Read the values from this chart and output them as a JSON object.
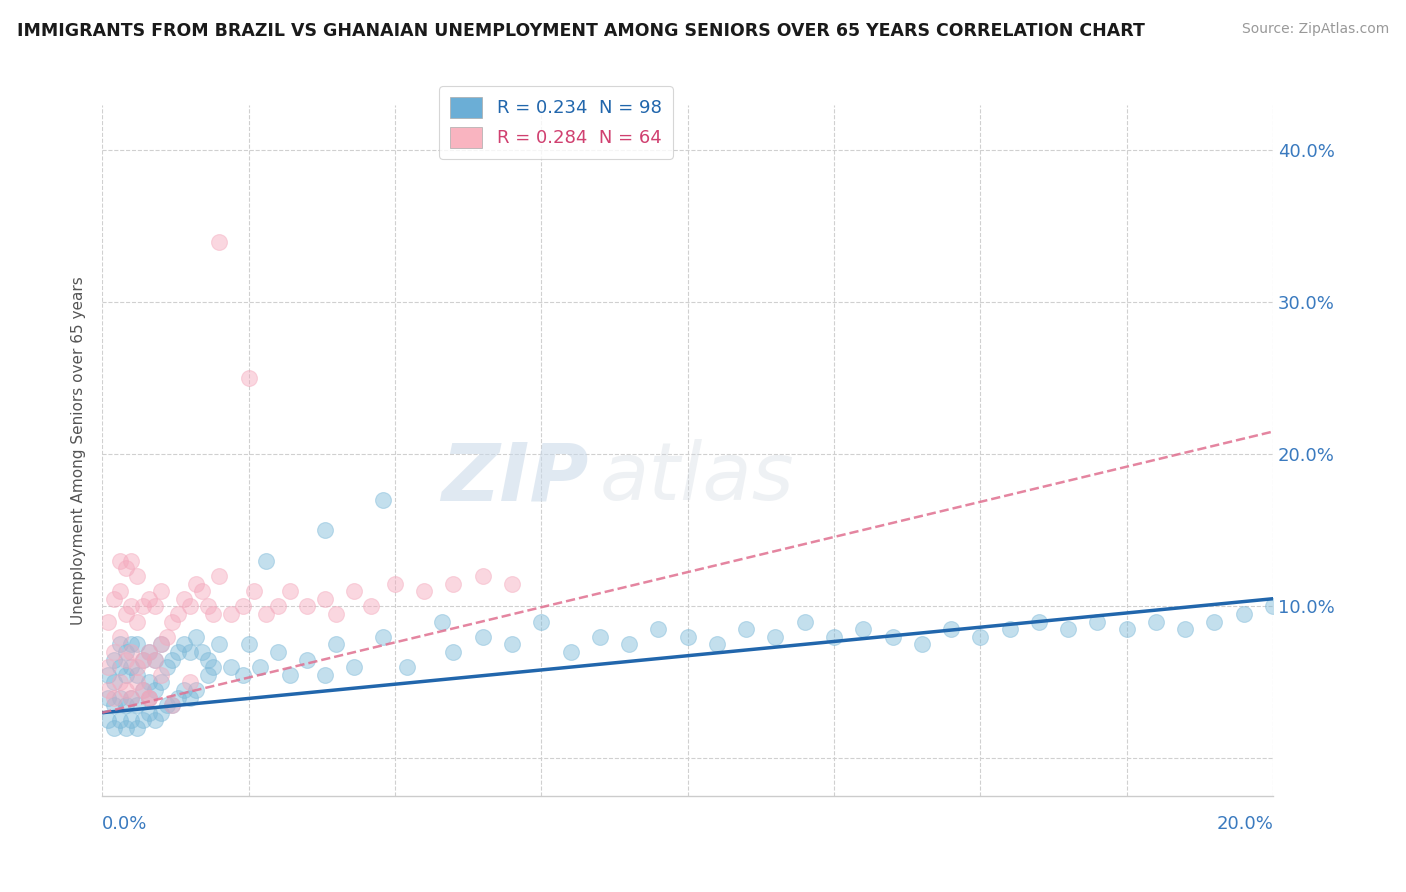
{
  "title": "IMMIGRANTS FROM BRAZIL VS GHANAIAN UNEMPLOYMENT AMONG SENIORS OVER 65 YEARS CORRELATION CHART",
  "source": "Source: ZipAtlas.com",
  "ylabel": "Unemployment Among Seniors over 65 years",
  "yticks": [
    0.0,
    0.1,
    0.2,
    0.3,
    0.4
  ],
  "ytick_labels": [
    "",
    "10.0%",
    "20.0%",
    "30.0%",
    "40.0%"
  ],
  "xlim": [
    0.0,
    0.2
  ],
  "ylim": [
    -0.025,
    0.43
  ],
  "legend_entries": [
    {
      "label": "R = 0.234  N = 98",
      "color": "#6baed6",
      "text_color": "#2166ac"
    },
    {
      "label": "R = 0.284  N = 64",
      "color": "#f9b4c0",
      "text_color": "#d04070"
    }
  ],
  "watermark_zip": "ZIP",
  "watermark_atlas": "atlas",
  "blue_color": "#7bb8d8",
  "pink_color": "#f4a8bc",
  "blue_line_color": "#2166ac",
  "pink_line_color": "#e07090",
  "grid_color": "#d0d0d0",
  "background_color": "#ffffff",
  "blue_scatter_x": [
    0.001,
    0.001,
    0.001,
    0.002,
    0.002,
    0.002,
    0.002,
    0.003,
    0.003,
    0.003,
    0.003,
    0.004,
    0.004,
    0.004,
    0.004,
    0.005,
    0.005,
    0.005,
    0.005,
    0.006,
    0.006,
    0.006,
    0.006,
    0.007,
    0.007,
    0.007,
    0.008,
    0.008,
    0.008,
    0.009,
    0.009,
    0.009,
    0.01,
    0.01,
    0.01,
    0.011,
    0.011,
    0.012,
    0.012,
    0.013,
    0.013,
    0.014,
    0.014,
    0.015,
    0.015,
    0.016,
    0.016,
    0.017,
    0.018,
    0.019,
    0.02,
    0.022,
    0.024,
    0.025,
    0.027,
    0.03,
    0.032,
    0.035,
    0.038,
    0.04,
    0.043,
    0.048,
    0.052,
    0.058,
    0.06,
    0.065,
    0.07,
    0.075,
    0.08,
    0.085,
    0.09,
    0.095,
    0.1,
    0.105,
    0.11,
    0.115,
    0.12,
    0.125,
    0.13,
    0.135,
    0.14,
    0.145,
    0.15,
    0.155,
    0.16,
    0.165,
    0.17,
    0.175,
    0.18,
    0.185,
    0.19,
    0.195,
    0.2,
    0.048,
    0.038,
    0.028,
    0.018,
    0.008
  ],
  "blue_scatter_y": [
    0.025,
    0.04,
    0.055,
    0.02,
    0.035,
    0.05,
    0.065,
    0.025,
    0.04,
    0.06,
    0.075,
    0.02,
    0.035,
    0.055,
    0.07,
    0.025,
    0.04,
    0.06,
    0.075,
    0.02,
    0.035,
    0.055,
    0.075,
    0.025,
    0.045,
    0.065,
    0.03,
    0.05,
    0.07,
    0.025,
    0.045,
    0.065,
    0.03,
    0.05,
    0.075,
    0.035,
    0.06,
    0.035,
    0.065,
    0.04,
    0.07,
    0.045,
    0.075,
    0.04,
    0.07,
    0.045,
    0.08,
    0.07,
    0.065,
    0.06,
    0.075,
    0.06,
    0.055,
    0.075,
    0.06,
    0.07,
    0.055,
    0.065,
    0.055,
    0.075,
    0.06,
    0.08,
    0.06,
    0.09,
    0.07,
    0.08,
    0.075,
    0.09,
    0.07,
    0.08,
    0.075,
    0.085,
    0.08,
    0.075,
    0.085,
    0.08,
    0.09,
    0.08,
    0.085,
    0.08,
    0.075,
    0.085,
    0.08,
    0.085,
    0.09,
    0.085,
    0.09,
    0.085,
    0.09,
    0.085,
    0.09,
    0.095,
    0.1,
    0.17,
    0.15,
    0.13,
    0.055,
    0.04
  ],
  "pink_scatter_x": [
    0.001,
    0.001,
    0.002,
    0.002,
    0.003,
    0.003,
    0.003,
    0.004,
    0.004,
    0.004,
    0.005,
    0.005,
    0.005,
    0.006,
    0.006,
    0.006,
    0.007,
    0.007,
    0.008,
    0.008,
    0.009,
    0.009,
    0.01,
    0.01,
    0.011,
    0.012,
    0.013,
    0.014,
    0.015,
    0.016,
    0.017,
    0.018,
    0.019,
    0.02,
    0.022,
    0.024,
    0.026,
    0.028,
    0.03,
    0.032,
    0.035,
    0.038,
    0.04,
    0.043,
    0.046,
    0.05,
    0.055,
    0.06,
    0.065,
    0.07,
    0.001,
    0.002,
    0.003,
    0.004,
    0.005,
    0.006,
    0.007,
    0.008,
    0.01,
    0.015,
    0.02,
    0.025,
    0.008,
    0.012
  ],
  "pink_scatter_y": [
    0.06,
    0.09,
    0.07,
    0.105,
    0.08,
    0.11,
    0.13,
    0.065,
    0.095,
    0.125,
    0.07,
    0.1,
    0.13,
    0.06,
    0.09,
    0.12,
    0.065,
    0.1,
    0.07,
    0.105,
    0.065,
    0.1,
    0.075,
    0.11,
    0.08,
    0.09,
    0.095,
    0.105,
    0.1,
    0.115,
    0.11,
    0.1,
    0.095,
    0.12,
    0.095,
    0.1,
    0.11,
    0.095,
    0.1,
    0.11,
    0.1,
    0.105,
    0.095,
    0.11,
    0.1,
    0.115,
    0.11,
    0.115,
    0.12,
    0.115,
    0.045,
    0.04,
    0.05,
    0.045,
    0.04,
    0.05,
    0.045,
    0.04,
    0.055,
    0.05,
    0.34,
    0.25,
    0.04,
    0.035
  ],
  "blue_trend_x": [
    0.0,
    0.2
  ],
  "blue_trend_y": [
    0.03,
    0.105
  ],
  "pink_trend_x": [
    0.0,
    0.2
  ],
  "pink_trend_y": [
    0.03,
    0.215
  ]
}
